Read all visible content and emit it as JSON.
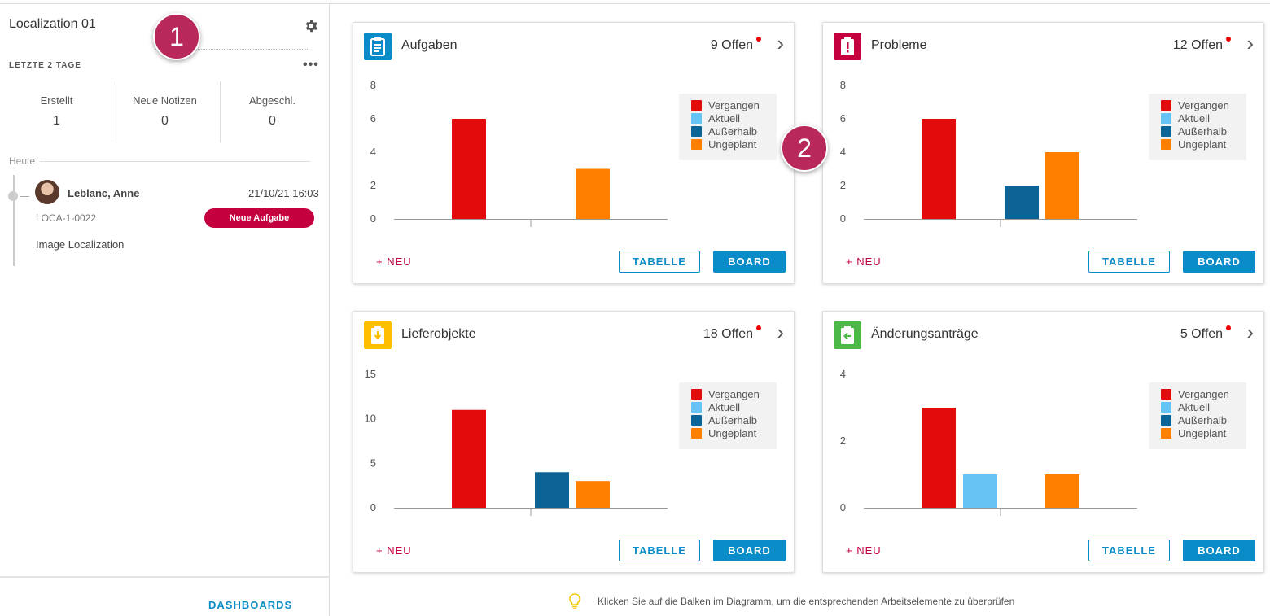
{
  "sidebar": {
    "title": "Localization 01",
    "period_label": "LETZTE 2 TAGE",
    "stats": [
      {
        "label": "Erstellt",
        "value": "1"
      },
      {
        "label": "Neue Notizen",
        "value": "0"
      },
      {
        "label": "Abgeschl.",
        "value": "0"
      }
    ],
    "today_label": "Heute",
    "entry": {
      "name": "Leblanc, Anne",
      "date": "21/10/21 16:03",
      "id": "LOCA-1-0022",
      "badge": "Neue Aufgabe",
      "description": "Image Localization"
    },
    "footer_link": "DASHBOARDS"
  },
  "markers": [
    "1",
    "2"
  ],
  "legend_labels": [
    "Vergangen",
    "Aktuell",
    "Außerhalb",
    "Ungeplant"
  ],
  "colors": {
    "vergangen": "#e30c0c",
    "aktuell": "#66c3f4",
    "ausserhalb": "#0b6396",
    "ungeplant": "#ff7f00",
    "accent": "#0a8cc8",
    "brand": "#c4003e"
  },
  "buttons": {
    "neu": "+ NEU",
    "tabelle": "TABELLE",
    "board": "BOARD"
  },
  "cards": [
    {
      "title": "Aufgaben",
      "count": "9 Offen",
      "icon": "clipboard-icon",
      "icon_color": "#0a8cc8"
    },
    {
      "title": "Probleme",
      "count": "12 Offen",
      "icon": "alert-clipboard-icon",
      "icon_color": "#c4003e"
    },
    {
      "title": "Lieferobjekte",
      "count": "18 Offen",
      "icon": "download-clipboard-icon",
      "icon_color": "#ffbf00"
    },
    {
      "title": "Änderungsanträge",
      "count": "5 Offen",
      "icon": "change-clipboard-icon",
      "icon_color": "#4cb848"
    }
  ],
  "chart_data": [
    {
      "type": "bar",
      "title": "Aufgaben",
      "categories": [
        "Vergangen",
        "Aktuell",
        "Außerhalb",
        "Ungeplant"
      ],
      "values": [
        6,
        0,
        0,
        3
      ],
      "yticks": [
        "0",
        "2",
        "4",
        "6",
        "8"
      ],
      "ylim": [
        0,
        8
      ]
    },
    {
      "type": "bar",
      "title": "Probleme",
      "categories": [
        "Vergangen",
        "Aktuell",
        "Außerhalb",
        "Ungeplant"
      ],
      "values": [
        6,
        0,
        2,
        4
      ],
      "yticks": [
        "0",
        "2",
        "4",
        "6",
        "8"
      ],
      "ylim": [
        0,
        8
      ]
    },
    {
      "type": "bar",
      "title": "Lieferobjekte",
      "categories": [
        "Vergangen",
        "Aktuell",
        "Außerhalb",
        "Ungeplant"
      ],
      "values": [
        11,
        0,
        4,
        3
      ],
      "yticks": [
        "0",
        "5",
        "10",
        "15"
      ],
      "ylim": [
        0,
        15
      ]
    },
    {
      "type": "bar",
      "title": "Änderungsanträge",
      "categories": [
        "Vergangen",
        "Aktuell",
        "Außerhalb",
        "Ungeplant"
      ],
      "values": [
        3,
        1,
        0,
        1
      ],
      "yticks": [
        "0",
        "2",
        "4"
      ],
      "ylim": [
        0,
        4
      ]
    }
  ],
  "tip": {
    "text": "Klicken Sie auf die Balken im Diagramm, um die entsprechenden Arbeitselemente zu überprüfen",
    "icon": "lightbulb-icon"
  }
}
